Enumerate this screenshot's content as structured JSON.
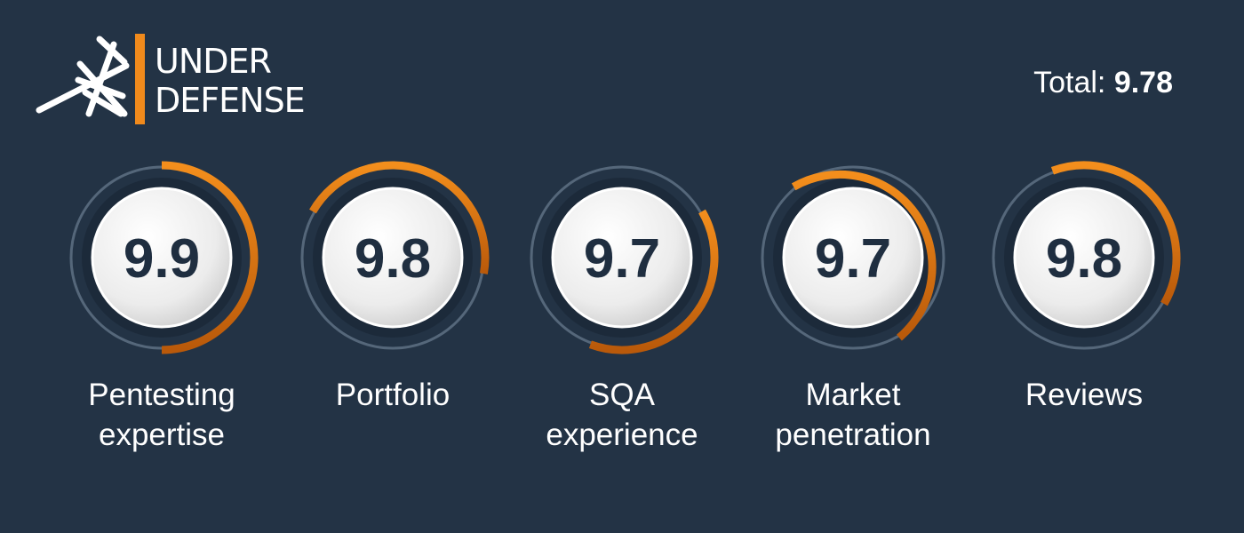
{
  "logo": {
    "line1": "UNDER",
    "line2": "DEFENSE"
  },
  "total": {
    "label": "Total:",
    "value": 9.78
  },
  "items": [
    {
      "score": 9.9,
      "label": [
        "Pentesting",
        "expertise"
      ]
    },
    {
      "score": 9.8,
      "label": [
        "Portfolio"
      ]
    },
    {
      "score": 9.7,
      "label": [
        "SQA",
        "experience"
      ]
    },
    {
      "score": 9.7,
      "label": [
        "Market",
        "penetration"
      ]
    },
    {
      "score": 9.8,
      "label": [
        "Reviews"
      ]
    }
  ]
}
